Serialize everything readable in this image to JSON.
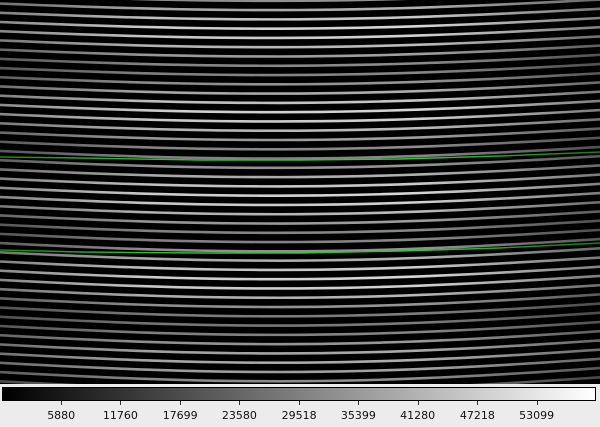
{
  "image": {
    "overlay_color": "#2ecc2e",
    "fringe_color": "#e8e8e8",
    "background_color": "#000000"
  },
  "colorbar": {
    "gradient_from": "#000000",
    "gradient_to": "#ffffff",
    "min": 0,
    "max": 59000,
    "ticks": [
      "5880",
      "11760",
      "17699",
      "23580",
      "29518",
      "35399",
      "41280",
      "47218",
      "53099"
    ]
  }
}
